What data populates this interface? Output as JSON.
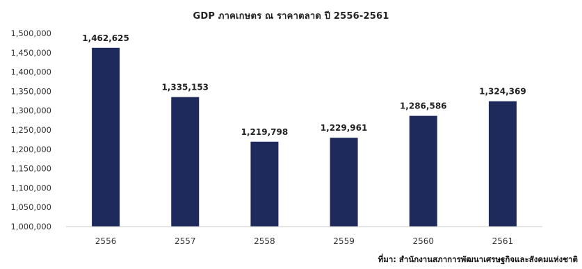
{
  "chart_data": {
    "type": "bar",
    "title": "GDP ภาคเกษตร ณ ราคาตลาด ปี 2556-2561",
    "xlabel": "",
    "ylabel": "",
    "categories": [
      "2556",
      "2557",
      "2558",
      "2559",
      "2560",
      "2561"
    ],
    "values": [
      1462625,
      1335153,
      1219798,
      1229961,
      1286586,
      1324369
    ],
    "data_labels": [
      "1,462,625",
      "1,335,153",
      "1,219,798",
      "1,229,961",
      "1,286,586",
      "1,324,369"
    ],
    "ylim": [
      1000000,
      1500000
    ],
    "yticks": [
      1000000,
      1050000,
      1100000,
      1150000,
      1200000,
      1250000,
      1300000,
      1350000,
      1400000,
      1450000,
      1500000
    ],
    "ytick_labels": [
      "1,000,000",
      "1,050,000",
      "1,100,000",
      "1,150,000",
      "1,200,000",
      "1,250,000",
      "1,300,000",
      "1,350,000",
      "1,400,000",
      "1,450,000",
      "1,500,000"
    ],
    "grid": false,
    "legend": "none",
    "bar_color": "#1f2a5c"
  },
  "source": "ที่มา: สำนักงานสภาการพัฒนาเศรษฐกิจและสังคมแห่งชาติ"
}
